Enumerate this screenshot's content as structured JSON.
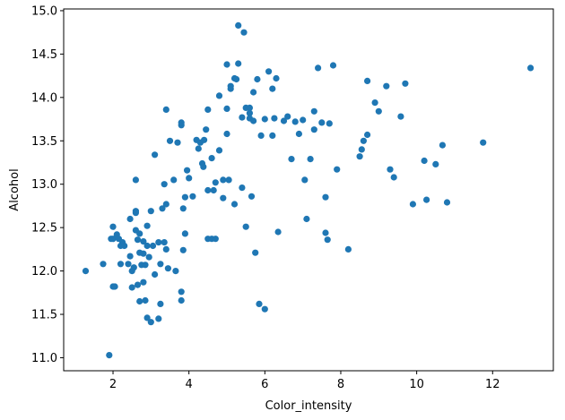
{
  "chart_data": {
    "type": "scatter",
    "title": "",
    "xlabel": "Color_intensity",
    "ylabel": "Alcohol",
    "xlim": [
      0.7,
      13.6
    ],
    "ylim": [
      10.85,
      15.02
    ],
    "xticks": [
      2,
      4,
      6,
      8,
      10,
      12
    ],
    "yticks": [
      11.0,
      11.5,
      12.0,
      12.5,
      13.0,
      13.5,
      14.0,
      14.5,
      15.0
    ],
    "xtick_labels": [
      "2",
      "4",
      "6",
      "8",
      "10",
      "12"
    ],
    "ytick_labels": [
      "11.0",
      "11.5",
      "12.0",
      "12.5",
      "13.0",
      "13.5",
      "14.0",
      "14.5",
      "15.0"
    ],
    "grid": false,
    "legend": "none",
    "marker_color": "#1f77b4",
    "x": [
      1.28,
      1.74,
      1.9,
      1.95,
      2.0,
      2.0,
      2.0,
      2.05,
      2.1,
      2.15,
      2.2,
      2.2,
      2.25,
      2.3,
      2.4,
      2.45,
      2.45,
      2.5,
      2.5,
      2.55,
      2.6,
      2.6,
      2.6,
      2.6,
      2.65,
      2.65,
      2.7,
      2.7,
      2.7,
      2.75,
      2.8,
      2.8,
      2.8,
      2.85,
      2.85,
      2.9,
      2.9,
      2.9,
      2.95,
      3.0,
      3.0,
      3.05,
      3.1,
      3.1,
      3.2,
      3.2,
      3.25,
      3.25,
      3.3,
      3.35,
      3.35,
      3.4,
      3.4,
      3.4,
      3.45,
      3.5,
      3.6,
      3.65,
      3.7,
      3.8,
      3.8,
      3.8,
      3.8,
      3.85,
      3.85,
      3.9,
      3.9,
      3.95,
      4.0,
      4.1,
      4.2,
      4.25,
      4.3,
      4.35,
      4.38,
      4.4,
      4.45,
      4.5,
      4.5,
      4.5,
      4.6,
      4.6,
      4.65,
      4.7,
      4.7,
      4.8,
      4.8,
      4.9,
      4.9,
      5.0,
      5.0,
      5.0,
      5.05,
      5.1,
      5.1,
      5.2,
      5.2,
      5.25,
      5.3,
      5.3,
      5.4,
      5.4,
      5.45,
      5.5,
      5.5,
      5.6,
      5.6,
      5.6,
      5.65,
      5.7,
      5.7,
      5.75,
      5.8,
      5.85,
      5.9,
      6.0,
      6.0,
      6.1,
      6.2,
      6.2,
      6.25,
      6.3,
      6.35,
      6.5,
      6.6,
      6.7,
      6.8,
      6.9,
      7.0,
      7.05,
      7.1,
      7.2,
      7.3,
      7.3,
      7.4,
      7.5,
      7.6,
      7.6,
      7.65,
      7.7,
      7.8,
      7.9,
      8.2,
      8.5,
      8.55,
      8.6,
      8.7,
      8.7,
      8.9,
      9.0,
      9.2,
      9.3,
      9.4,
      9.58,
      9.7,
      9.9,
      10.2,
      10.26,
      10.5,
      10.68,
      10.8,
      11.75,
      13.0
    ],
    "y": [
      12.0,
      12.08,
      11.03,
      12.37,
      11.82,
      12.51,
      12.37,
      11.82,
      12.42,
      12.37,
      12.29,
      12.08,
      12.33,
      12.29,
      12.08,
      12.17,
      12.6,
      12.0,
      11.81,
      12.04,
      12.69,
      13.05,
      12.47,
      12.67,
      11.84,
      12.36,
      11.65,
      12.43,
      12.21,
      12.07,
      11.87,
      12.34,
      12.2,
      11.66,
      12.07,
      12.29,
      11.46,
      12.52,
      12.16,
      12.69,
      11.41,
      12.29,
      13.34,
      11.96,
      12.33,
      11.45,
      11.62,
      12.08,
      12.72,
      13.0,
      12.33,
      13.86,
      12.25,
      12.77,
      12.03,
      13.5,
      13.05,
      12.0,
      13.48,
      13.68,
      11.66,
      11.76,
      13.71,
      12.24,
      12.72,
      12.85,
      12.43,
      13.16,
      13.07,
      12.86,
      13.51,
      13.41,
      13.48,
      13.24,
      13.2,
      13.51,
      13.63,
      12.37,
      12.93,
      13.86,
      13.3,
      12.37,
      12.93,
      13.02,
      12.37,
      13.39,
      14.02,
      13.05,
      12.84,
      13.58,
      13.87,
      14.38,
      13.05,
      14.1,
      14.13,
      12.77,
      14.22,
      14.21,
      14.83,
      14.39,
      13.77,
      12.96,
      14.75,
      12.51,
      13.88,
      13.82,
      13.76,
      13.88,
      12.86,
      13.73,
      14.06,
      12.21,
      14.21,
      11.62,
      13.56,
      11.56,
      13.75,
      14.3,
      14.1,
      13.56,
      13.76,
      14.22,
      12.45,
      13.73,
      13.78,
      13.29,
      13.72,
      13.58,
      13.74,
      13.05,
      12.6,
      13.29,
      13.84,
      13.63,
      14.34,
      13.71,
      12.44,
      12.85,
      12.36,
      13.7,
      14.37,
      13.17,
      12.25,
      13.32,
      13.4,
      13.5,
      13.57,
      14.19,
      13.94,
      13.84,
      14.13,
      13.17,
      13.08,
      13.78,
      14.16,
      12.77,
      13.27,
      12.82,
      13.23,
      13.45,
      12.79,
      13.48,
      14.34
    ]
  }
}
